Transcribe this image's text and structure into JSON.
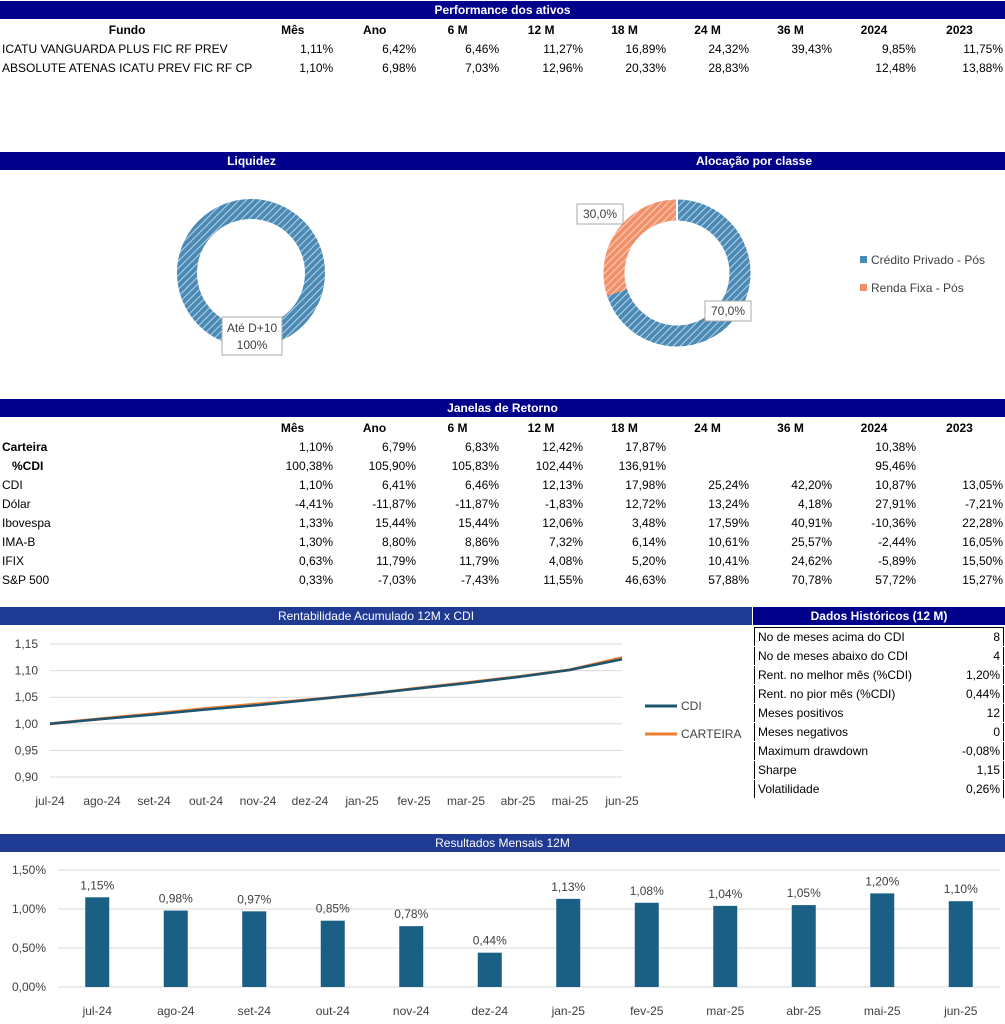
{
  "performance": {
    "title": "Performance dos ativos",
    "headers": [
      "Fundo",
      "Mês",
      "Ano",
      "6 M",
      "12 M",
      "18 M",
      "24 M",
      "36 M",
      "2024",
      "2023"
    ],
    "rows": [
      {
        "name": "ICATU VANGUARDA PLUS FIC RF PREV",
        "values": [
          "1,11%",
          "6,42%",
          "6,46%",
          "11,27%",
          "16,89%",
          "24,32%",
          "39,43%",
          "9,85%",
          "11,75%"
        ]
      },
      {
        "name": "ABSOLUTE ATENAS ICATU PREV FIC RF CP",
        "values": [
          "1,10%",
          "6,98%",
          "7,03%",
          "12,96%",
          "20,33%",
          "28,83%",
          "",
          "12,48%",
          "13,88%"
        ]
      }
    ]
  },
  "liquidez": {
    "title": "Liquidez",
    "label_line1": "Até D+10",
    "label_line2": "100%",
    "color": "#4a8ab5"
  },
  "alocacao": {
    "title": "Alocação por classe",
    "slices": [
      {
        "name": "Crédito Privado - Pós",
        "value": 70.0,
        "label": "70,0%",
        "color": "#4a8ab5"
      },
      {
        "name": "Renda Fixa - Pós",
        "value": 30.0,
        "label": "30,0%",
        "color": "#f0916a"
      }
    ]
  },
  "janelas": {
    "title": "Janelas de Retorno",
    "headers": [
      "",
      "Mês",
      "Ano",
      "6 M",
      "12 M",
      "18 M",
      "24 M",
      "36 M",
      "2024",
      "2023"
    ],
    "rows": [
      {
        "name": "Carteira",
        "bold": true,
        "values": [
          "1,10%",
          "6,79%",
          "6,83%",
          "12,42%",
          "17,87%",
          "",
          "",
          "10,38%",
          ""
        ]
      },
      {
        "name": "%CDI",
        "bold": true,
        "indent": true,
        "values": [
          "100,38%",
          "105,90%",
          "105,83%",
          "102,44%",
          "136,91%",
          "",
          "",
          "95,46%",
          ""
        ]
      },
      {
        "name": "CDI",
        "values": [
          "1,10%",
          "6,41%",
          "6,46%",
          "12,13%",
          "17,98%",
          "25,24%",
          "42,20%",
          "10,87%",
          "13,05%"
        ]
      },
      {
        "name": "Dólar",
        "values": [
          "-4,41%",
          "-11,87%",
          "-11,87%",
          "-1,83%",
          "12,72%",
          "13,24%",
          "4,18%",
          "27,91%",
          "-7,21%"
        ]
      },
      {
        "name": "Ibovespa",
        "values": [
          "1,33%",
          "15,44%",
          "15,44%",
          "12,06%",
          "3,48%",
          "17,59%",
          "40,91%",
          "-10,36%",
          "22,28%"
        ]
      },
      {
        "name": "IMA-B",
        "values": [
          "1,30%",
          "8,80%",
          "8,86%",
          "7,32%",
          "6,14%",
          "10,61%",
          "25,57%",
          "-2,44%",
          "16,05%"
        ]
      },
      {
        "name": "IFIX",
        "values": [
          "0,63%",
          "11,79%",
          "11,79%",
          "4,08%",
          "5,20%",
          "10,41%",
          "24,62%",
          "-5,89%",
          "15,50%"
        ]
      },
      {
        "name": "S&P 500",
        "values": [
          "0,33%",
          "-7,03%",
          "-7,43%",
          "11,55%",
          "46,63%",
          "57,88%",
          "70,78%",
          "57,72%",
          "15,27%"
        ]
      }
    ]
  },
  "rentabilidade": {
    "title": "Rentabilidade Acumulado 12M x CDI",
    "chart_data": {
      "type": "line",
      "x": [
        "jul-24",
        "ago-24",
        "set-24",
        "out-24",
        "nov-24",
        "dez-24",
        "jan-25",
        "fev-25",
        "mar-25",
        "abr-25",
        "mai-25",
        "jun-25"
      ],
      "yticks": [
        "0,90",
        "0,95",
        "1,00",
        "1,05",
        "1,10",
        "1,15"
      ],
      "ylim": [
        0.9,
        1.15
      ],
      "series": [
        {
          "name": "CDI",
          "color": "#1d5470",
          "values": [
            1.0,
            1.0091,
            1.0174,
            1.0269,
            1.035,
            1.0449,
            1.0551,
            1.0656,
            1.0762,
            1.088,
            1.1014,
            1.1213
          ]
        },
        {
          "name": "CARTEIRA",
          "color": "#ed7d31",
          "values": [
            1.0,
            1.0098,
            1.0188,
            1.0287,
            1.0373,
            1.0454,
            1.0547,
            1.0661,
            1.0772,
            1.0885,
            1.1015,
            1.1242
          ]
        }
      ]
    }
  },
  "historicos": {
    "title": "Dados Históricos (12 M)",
    "rows": [
      {
        "label": "No de meses acima do CDI",
        "value": "8"
      },
      {
        "label": "No de meses abaixo do CDI",
        "value": "4"
      },
      {
        "label": "Rent. no melhor mês (%CDI)",
        "value": "1,20%"
      },
      {
        "label": "Rent. no pior mês (%CDI)",
        "value": "0,44%"
      },
      {
        "label": "Meses positivos",
        "value": "12"
      },
      {
        "label": "Meses negativos",
        "value": "0"
      },
      {
        "label": "Maximum drawdown",
        "value": "-0,08%"
      },
      {
        "label": "Sharpe",
        "value": "1,15"
      },
      {
        "label": "Volatilidade",
        "value": "0,26%"
      }
    ]
  },
  "mensais": {
    "title": "Resultados Mensais 12M",
    "chart_data": {
      "type": "bar",
      "categories": [
        "jul-24",
        "ago-24",
        "set-24",
        "out-24",
        "nov-24",
        "dez-24",
        "jan-25",
        "fev-25",
        "mar-25",
        "abr-25",
        "mai-25",
        "jun-25"
      ],
      "values": [
        1.15,
        0.98,
        0.97,
        0.85,
        0.78,
        0.44,
        1.13,
        1.08,
        1.04,
        1.05,
        1.2,
        1.1
      ],
      "labels": [
        "1,15%",
        "0,98%",
        "0,97%",
        "0,85%",
        "0,78%",
        "0,44%",
        "1,13%",
        "1,08%",
        "1,04%",
        "1,05%",
        "1,20%",
        "1,10%"
      ],
      "yticks": [
        "0,00%",
        "0,50%",
        "1,00%",
        "1,50%"
      ],
      "ylim": [
        0,
        1.5
      ],
      "color": "#1a5f84"
    }
  }
}
